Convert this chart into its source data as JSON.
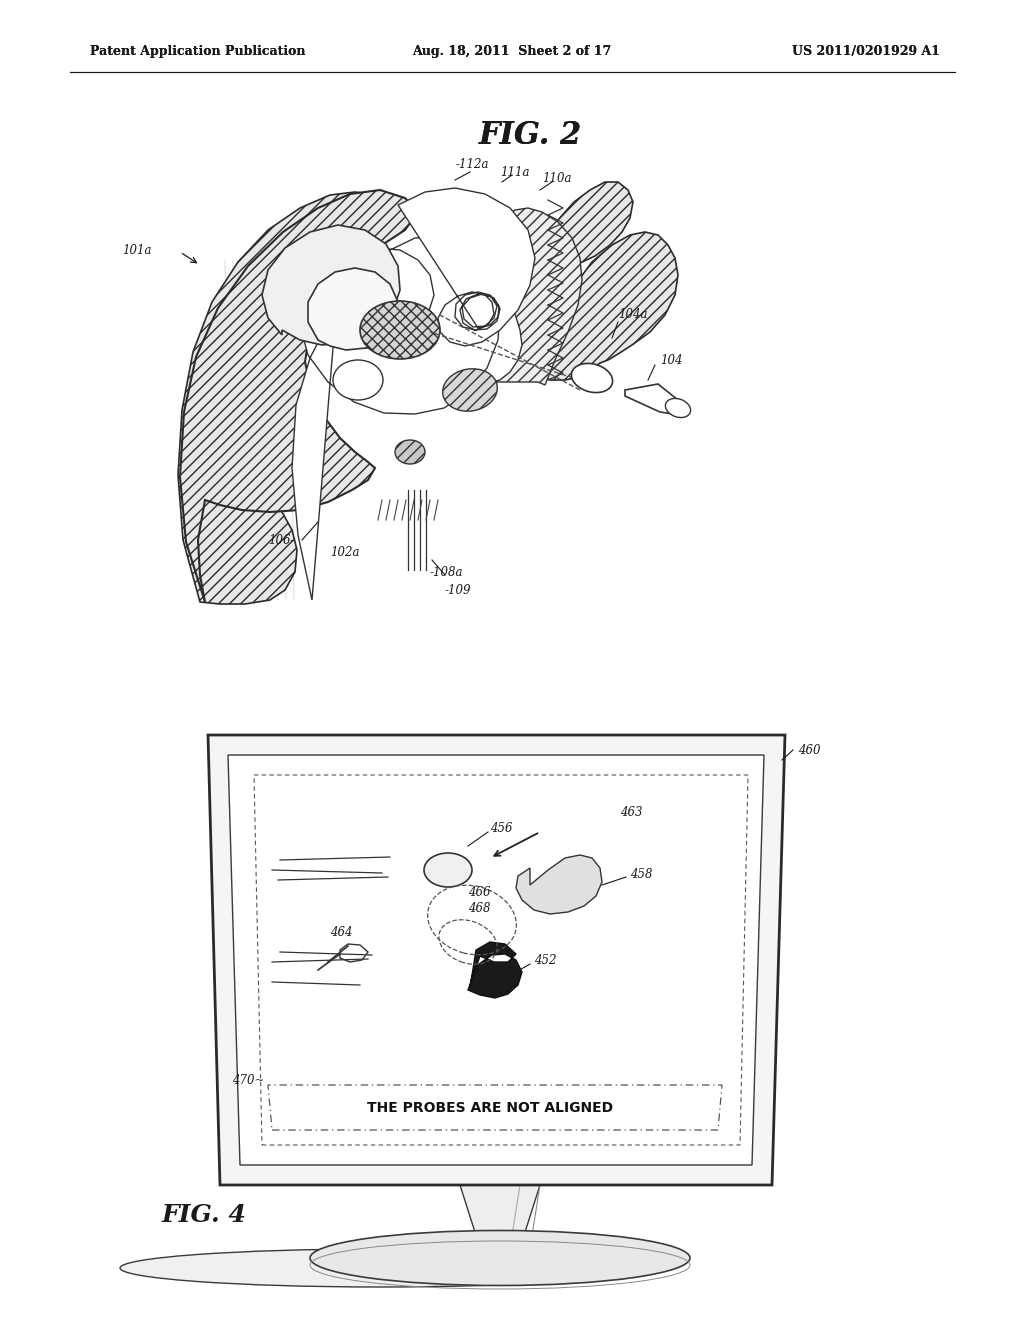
{
  "background_color": "#ffffff",
  "header_left": "Patent Application Publication",
  "header_middle": "Aug. 18, 2011  Sheet 2 of 17",
  "header_right": "US 2011/0201929 A1",
  "fig2_title": "FIG. 2",
  "fig4_title": "FIG. 4",
  "alert_text": "THE PROBES ARE NOT ALIGNED",
  "line_color": "#1a1a1a"
}
